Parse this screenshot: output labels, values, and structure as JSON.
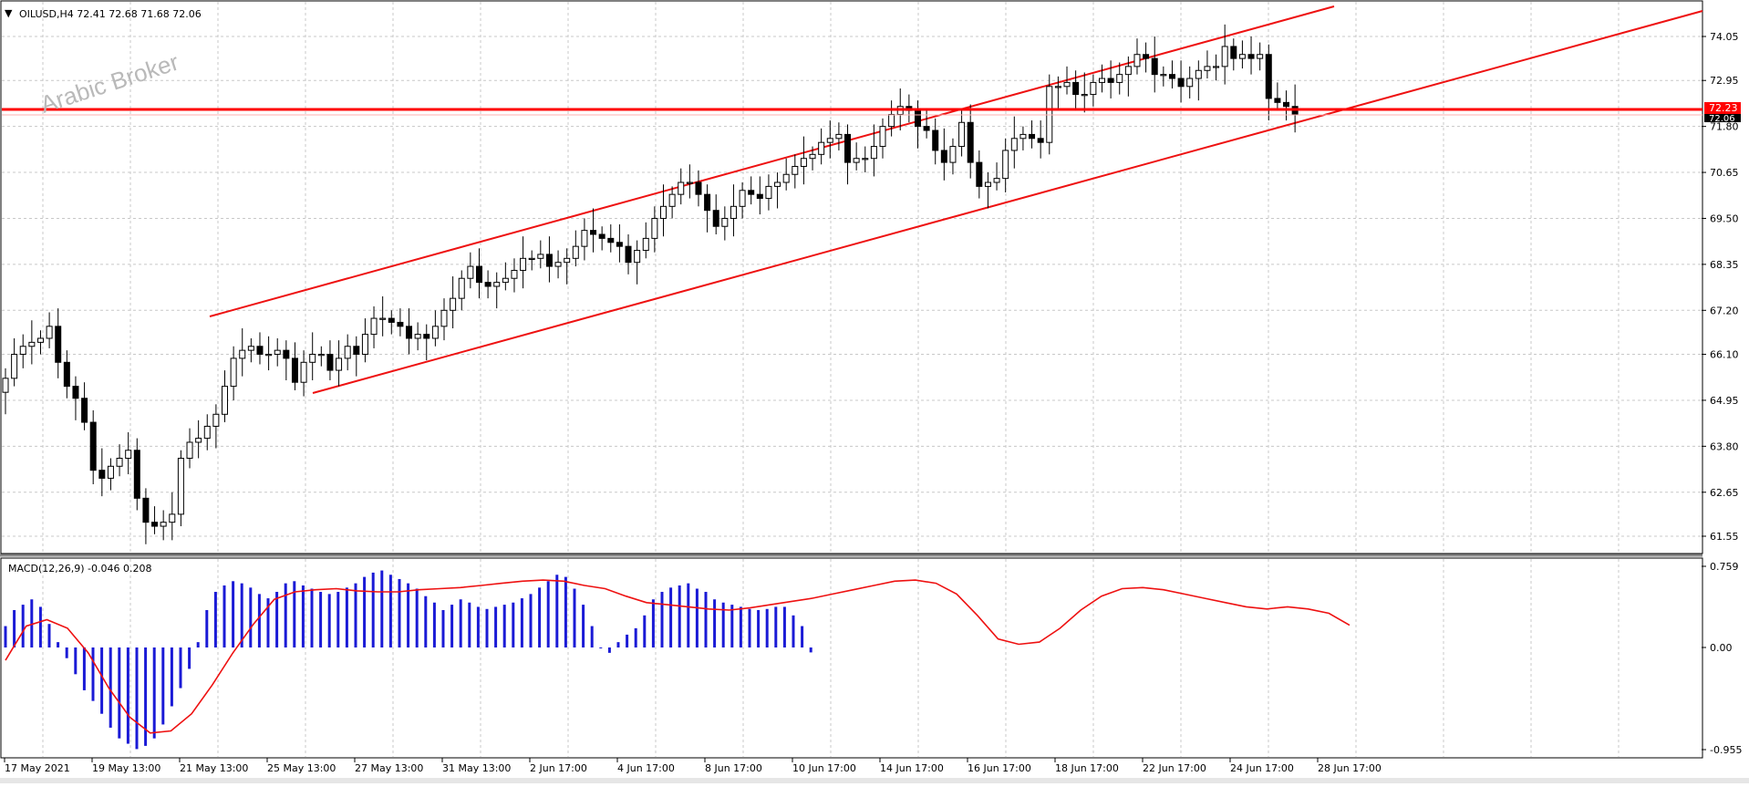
{
  "symbol_header": "OILUSD,H4  72.41 72.68 71.68 72.06",
  "watermark": "Arabic Broker",
  "current_price_label": "72.23",
  "current_price_label_2": "72.06",
  "colors": {
    "background": "#ffffff",
    "grid": "#c8c8c8",
    "candle": "#000000",
    "channel": "#ee1111",
    "hline": "#ff0000",
    "macd_hist": "#1a1ad6",
    "macd_signal": "#ee1111",
    "price_label_bg": "#ff0000"
  },
  "chart_data": [
    {
      "type": "candlestick",
      "title": "OILUSD,H4",
      "y_ticks": [
        "74.05",
        "72.95",
        "71.80",
        "70.65",
        "69.50",
        "68.35",
        "67.20",
        "66.10",
        "64.95",
        "63.80",
        "62.65",
        "61.55"
      ],
      "ylim": [
        61.2,
        74.6
      ],
      "x_ticks": [
        "17 May 2021",
        "19 May 13:00",
        "21 May 13:00",
        "25 May 13:00",
        "27 May 13:00",
        "31 May 13:00",
        "2 Jun 17:00",
        "4 Jun 17:00",
        "8 Jun 17:00",
        "10 Jun 17:00",
        "14 Jun 17:00",
        "16 Jun 17:00",
        "18 Jun 17:00",
        "22 Jun 17:00",
        "24 Jun 17:00",
        "28 Jun 17:00"
      ],
      "horizontal_line": 72.23,
      "close_levels": [
        65.5,
        66.1,
        66.3,
        66.4,
        66.5,
        66.8,
        65.9,
        65.3,
        65.0,
        64.4,
        63.2,
        63.0,
        63.3,
        63.5,
        63.7,
        62.5,
        61.9,
        61.8,
        61.9,
        62.1,
        63.5,
        63.9,
        64.0,
        64.3,
        64.6,
        65.3,
        66.0,
        66.2,
        66.3,
        66.1,
        66.1,
        66.2,
        66.0,
        65.4,
        65.9,
        66.1,
        66.1,
        65.7,
        66.0,
        66.3,
        66.1,
        66.6,
        67.0,
        67.0,
        66.9,
        66.8,
        66.5,
        66.6,
        66.5,
        66.8,
        67.2,
        67.5,
        68.0,
        68.3,
        67.9,
        67.8,
        67.9,
        68.0,
        68.2,
        68.5,
        68.5,
        68.6,
        68.3,
        68.4,
        68.5,
        68.8,
        69.2,
        69.1,
        69.0,
        68.9,
        68.8,
        68.4,
        68.7,
        69.0,
        69.5,
        69.8,
        70.1,
        70.4,
        70.4,
        70.1,
        69.7,
        69.3,
        69.5,
        69.8,
        70.2,
        70.1,
        70.0,
        70.3,
        70.4,
        70.6,
        70.8,
        71.0,
        71.1,
        71.4,
        71.5,
        71.6,
        70.9,
        71.0,
        71.0,
        71.3,
        71.8,
        72.1,
        72.3,
        72.2,
        71.8,
        71.7,
        71.2,
        70.9,
        71.3,
        71.9,
        70.9,
        70.3,
        70.4,
        70.5,
        71.2,
        71.5,
        71.6,
        71.5,
        71.4,
        72.8,
        72.8,
        72.9,
        72.6,
        72.6,
        72.9,
        73.0,
        72.9,
        73.1,
        73.3,
        73.6,
        73.5,
        73.1,
        73.1,
        73.0,
        72.8,
        73.0,
        73.2,
        73.3,
        73.3,
        73.8,
        73.5,
        73.6,
        73.5,
        73.6,
        72.5,
        72.4,
        72.3,
        72.1
      ]
    },
    {
      "type": "bar+line",
      "title": "MACD(12,26,9) -0.046 0.208",
      "y_ticks": [
        "0.759",
        "0.00",
        "-0.955"
      ],
      "ylim": [
        -1.0,
        0.78
      ],
      "series": [
        {
          "name": "MACD",
          "values": [
            0.2,
            0.35,
            0.4,
            0.45,
            0.38,
            0.22,
            0.05,
            -0.1,
            -0.25,
            -0.4,
            -0.5,
            -0.62,
            -0.75,
            -0.85,
            -0.9,
            -0.95,
            -0.92,
            -0.85,
            -0.72,
            -0.55,
            -0.38,
            -0.2,
            0.05,
            0.35,
            0.52,
            0.58,
            0.62,
            0.6,
            0.56,
            0.5,
            0.46,
            0.52,
            0.6,
            0.62,
            0.58,
            0.55,
            0.52,
            0.5,
            0.52,
            0.56,
            0.6,
            0.66,
            0.7,
            0.72,
            0.68,
            0.64,
            0.6,
            0.55,
            0.48,
            0.42,
            0.35,
            0.4,
            0.45,
            0.42,
            0.38,
            0.36,
            0.38,
            0.4,
            0.42,
            0.46,
            0.5,
            0.56,
            0.62,
            0.68,
            0.66,
            0.55,
            0.4,
            0.2,
            0.0,
            -0.05,
            0.05,
            0.12,
            0.18,
            0.3,
            0.45,
            0.52,
            0.56,
            0.58,
            0.6,
            0.55,
            0.52,
            0.45,
            0.42,
            0.4,
            0.38,
            0.36,
            0.35,
            0.36,
            0.38,
            0.38,
            0.3,
            0.2,
            -0.046
          ]
        },
        {
          "name": "Signal",
          "values": [
            -0.12,
            0.2,
            0.26,
            0.18,
            -0.05,
            -0.38,
            -0.65,
            -0.8,
            -0.78,
            -0.62,
            -0.35,
            -0.05,
            0.22,
            0.45,
            0.52,
            0.54,
            0.55,
            0.53,
            0.52,
            0.52,
            0.54,
            0.55,
            0.56,
            0.58,
            0.6,
            0.62,
            0.63,
            0.62,
            0.58,
            0.55,
            0.48,
            0.42,
            0.4,
            0.38,
            0.36,
            0.35,
            0.37,
            0.4,
            0.43,
            0.46,
            0.5,
            0.54,
            0.58,
            0.62,
            0.63,
            0.6,
            0.5,
            0.3,
            0.08,
            0.03,
            0.05,
            0.18,
            0.35,
            0.48,
            0.55,
            0.56,
            0.54,
            0.5,
            0.46,
            0.42,
            0.38,
            0.36,
            0.38,
            0.36,
            0.32,
            0.208
          ]
        }
      ]
    }
  ]
}
